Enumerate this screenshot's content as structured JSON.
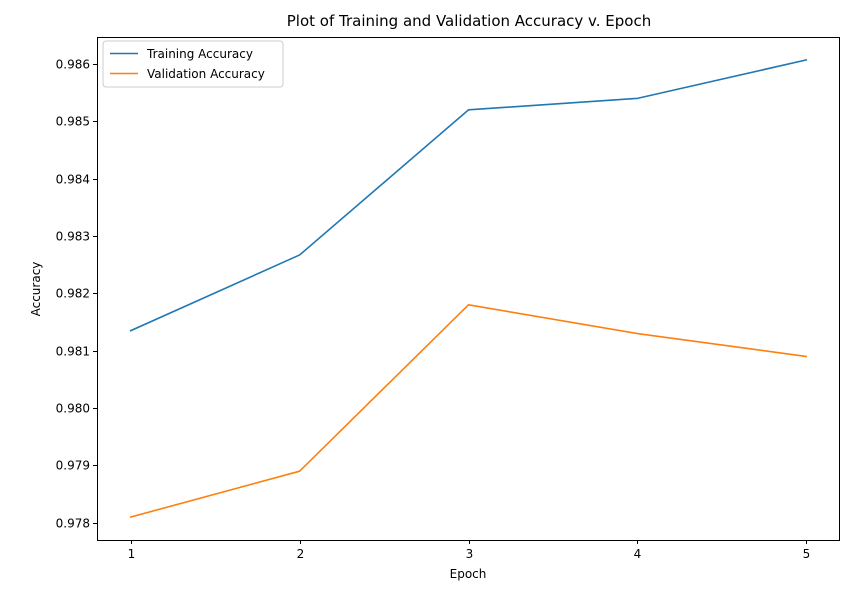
{
  "chart_data": {
    "type": "line",
    "title": "Plot of Training and Validation Accuracy v. Epoch",
    "xlabel": "Epoch",
    "ylabel": "Accuracy",
    "x": [
      1,
      2,
      3,
      4,
      5
    ],
    "xticks": [
      "1",
      "2",
      "3",
      "4",
      "5"
    ],
    "yticks": [
      "0.978",
      "0.979",
      "0.980",
      "0.981",
      "0.982",
      "0.983",
      "0.984",
      "0.985",
      "0.986"
    ],
    "xlim": [
      0.8,
      5.2
    ],
    "ylim": [
      0.9777,
      0.98647
    ],
    "grid": false,
    "legend_position": "upper-left",
    "series": [
      {
        "name": "Training Accuracy",
        "color": "#1f77b4",
        "values": [
          0.98135,
          0.98267,
          0.9852,
          0.9854,
          0.98607
        ]
      },
      {
        "name": "Validation Accuracy",
        "color": "#ff7f0e",
        "values": [
          0.9781,
          0.9789,
          0.9818,
          0.9813,
          0.9809
        ]
      }
    ]
  }
}
